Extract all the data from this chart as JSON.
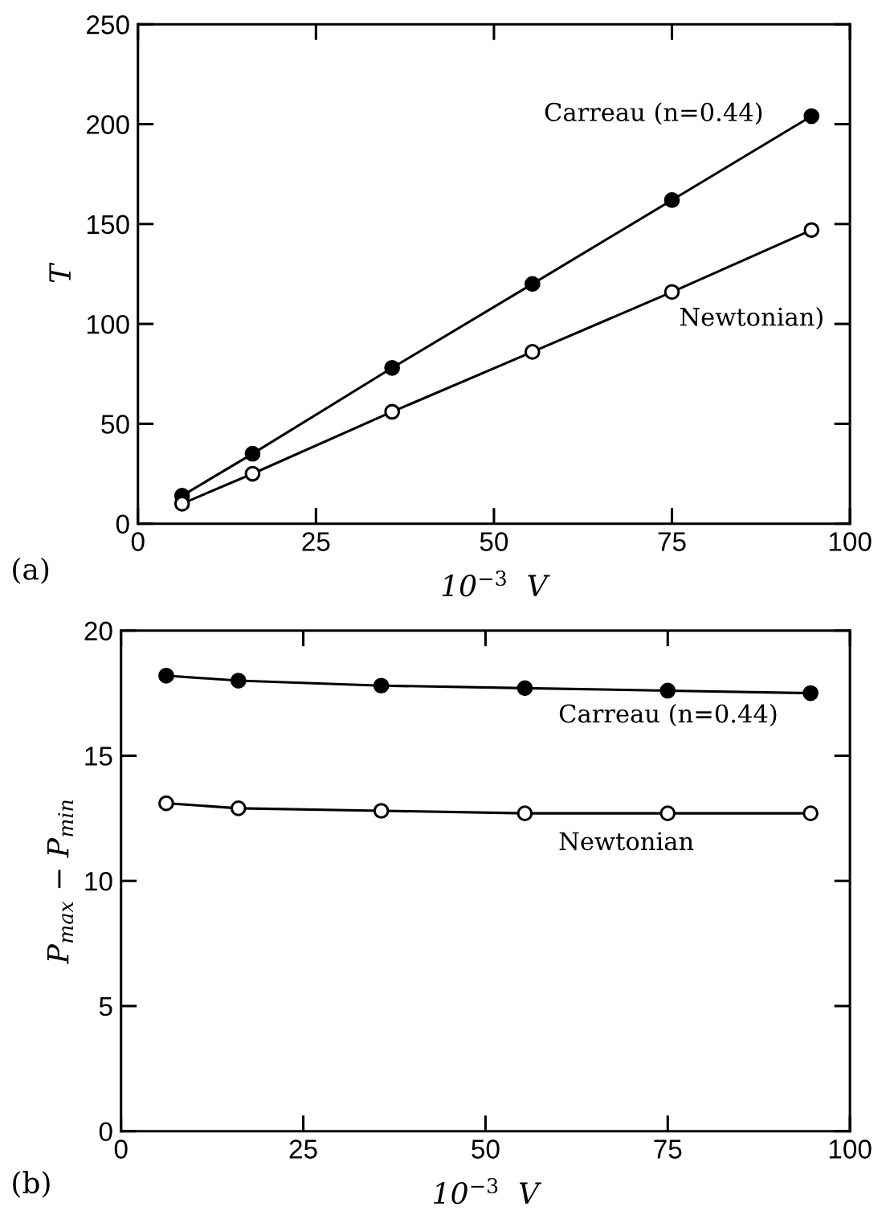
{
  "chart_data": [
    {
      "type": "line",
      "xlabel": "10$^{−3}$  V",
      "ylabel": "T",
      "x": [
        6.2,
        16.1,
        35.7,
        55.4,
        75,
        94.6
      ],
      "xlim": [
        0,
        100
      ],
      "xticks": [
        0,
        25,
        50,
        75,
        100
      ],
      "ylim": [
        0,
        250
      ],
      "yticks": [
        0,
        50,
        100,
        150,
        200,
        250
      ],
      "grid": false,
      "legend": false,
      "line_style": "solid",
      "marker": "circle",
      "series": [
        {
          "color": "#000000",
          "values": [
            14,
            35,
            78,
            120,
            162,
            204
          ]
        },
        {
          "color": "#000000",
          "values": [
            10,
            25,
            56,
            86,
            116,
            147
          ]
        }
      ],
      "annotations": [
        "(a)",
        "Carreau (n=0.44)",
        "Newtonian)"
      ]
    },
    {
      "type": "line",
      "xlabel": "10$^{−3}$  V",
      "ylabel": "P$_{max}$ − P$_{min}$",
      "x": [
        6.2,
        16.1,
        35.7,
        55.4,
        75,
        94.6
      ],
      "xlim": [
        0,
        100
      ],
      "xticks": [
        0,
        25,
        50,
        75,
        100
      ],
      "ylim": [
        0,
        20
      ],
      "yticks": [
        0,
        5,
        10,
        15,
        20
      ],
      "grid": false,
      "legend": false,
      "line_style": "solid",
      "marker": "circle",
      "series": [
        {
          "color": "#000000",
          "values": [
            18.2,
            18.0,
            17.8,
            17.7,
            17.6,
            17.5
          ]
        },
        {
          "color": "#000000",
          "values": [
            13.1,
            12.9,
            12.8,
            12.7,
            12.7,
            12.7
          ]
        }
      ],
      "annotations": [
        "(b)",
        "Carreau (n=0.44)",
        "Newtonian"
      ]
    }
  ]
}
